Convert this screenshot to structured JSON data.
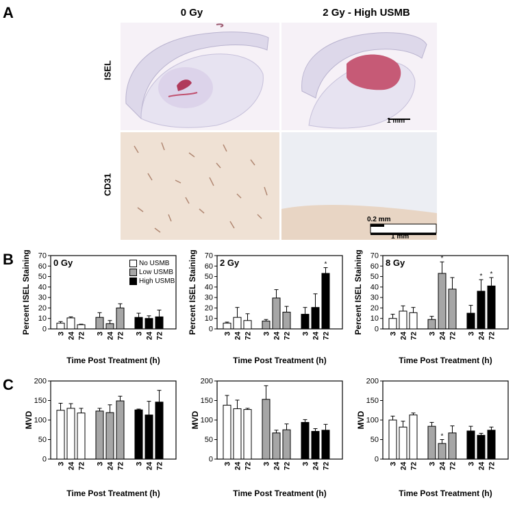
{
  "panelA": {
    "letter": "A",
    "col_titles": [
      "0 Gy",
      "2 Gy - High USMB"
    ],
    "row_labels": [
      "ISEL",
      "CD31"
    ],
    "scalebar_1": "1 mm",
    "scalebar_2a": "0.2 mm",
    "scalebar_2b": "1 mm"
  },
  "panelB": {
    "letter": "B"
  },
  "panelC": {
    "letter": "C"
  },
  "legend": [
    "No USMB",
    "Low USMB",
    "High USMB"
  ],
  "colors": {
    "no": "#ffffff",
    "low": "#a6a6a6",
    "high": "#000000"
  },
  "chart_data": [
    {
      "type": "bar",
      "panel": "B",
      "title": "0 Gy",
      "ylabel": "Percent ISEL Staining",
      "xlabel": "Time Post Treatment (h)",
      "ylim": [
        0,
        70
      ],
      "yticks": [
        0,
        10,
        20,
        30,
        40,
        50,
        60,
        70
      ],
      "categories": [
        "3",
        "24",
        "72"
      ],
      "series": [
        {
          "name": "No USMB",
          "values": [
            5.5,
            10.5,
            4
          ],
          "errors": [
            1.5,
            1,
            0.5
          ],
          "sig": [
            false,
            false,
            false
          ]
        },
        {
          "name": "Low USMB",
          "values": [
            11,
            5,
            20
          ],
          "errors": [
            4.5,
            3,
            4
          ],
          "sig": [
            false,
            false,
            false
          ]
        },
        {
          "name": "High USMB",
          "values": [
            11,
            10,
            11.5
          ],
          "errors": [
            4,
            2.5,
            6.5
          ],
          "sig": [
            false,
            false,
            false
          ]
        }
      ]
    },
    {
      "type": "bar",
      "panel": "B",
      "title": "2 Gy",
      "ylabel": "Percent ISEL Staining",
      "xlabel": "Time Post Treatment (h)",
      "ylim": [
        0,
        70
      ],
      "yticks": [
        0,
        10,
        20,
        30,
        40,
        50,
        60,
        70
      ],
      "categories": [
        "3",
        "24",
        "72"
      ],
      "series": [
        {
          "series_key": "No USMB",
          "values": [
            5.5,
            11,
            8
          ],
          "errors": [
            1,
            9.5,
            6.5
          ],
          "sig": [
            false,
            false,
            false
          ]
        },
        {
          "series_key": "Low USMB",
          "values": [
            7.5,
            29.5,
            16
          ],
          "errors": [
            1.5,
            8,
            5.5
          ],
          "sig": [
            false,
            false,
            false
          ]
        },
        {
          "series_key": "High USMB",
          "values": [
            14,
            20.5,
            53
          ],
          "errors": [
            6.5,
            13,
            5.5
          ],
          "sig": [
            false,
            false,
            true
          ]
        }
      ]
    },
    {
      "type": "bar",
      "panel": "B",
      "title": "8 Gy",
      "ylabel": "Percent ISEL Staining",
      "xlabel": "Time Post Treatment (h)",
      "ylim": [
        0,
        70
      ],
      "yticks": [
        0,
        10,
        20,
        30,
        40,
        50,
        60,
        70
      ],
      "categories": [
        "3",
        "24",
        "72"
      ],
      "series": [
        {
          "series_key": "No USMB",
          "values": [
            10,
            17,
            15.5
          ],
          "errors": [
            4,
            5,
            5
          ],
          "sig": [
            false,
            false,
            false
          ]
        },
        {
          "series_key": "Low USMB",
          "values": [
            9,
            53,
            38
          ],
          "errors": [
            3,
            11,
            11
          ],
          "sig": [
            false,
            true,
            false
          ]
        },
        {
          "series_key": "High USMB",
          "values": [
            15,
            36,
            41
          ],
          "errors": [
            7.5,
            11,
            8
          ],
          "sig": [
            false,
            true,
            true
          ]
        }
      ]
    },
    {
      "type": "bar",
      "panel": "C",
      "title": "",
      "ylabel": "MVD",
      "xlabel": "Time Post Treatment (h)",
      "ylim": [
        0,
        200
      ],
      "yticks": [
        0,
        50,
        100,
        150,
        200
      ],
      "categories": [
        "3",
        "24",
        "72"
      ],
      "series": [
        {
          "series_key": "No USMB",
          "values": [
            125,
            130,
            118
          ],
          "errors": [
            18,
            12,
            12
          ],
          "sig": [
            false,
            false,
            false
          ]
        },
        {
          "series_key": "Low USMB",
          "values": [
            123,
            119,
            149
          ],
          "errors": [
            7,
            20,
            12
          ],
          "sig": [
            false,
            false,
            false
          ]
        },
        {
          "series_key": "High USMB",
          "values": [
            126,
            113,
            146
          ],
          "errors": [
            2,
            35,
            30
          ],
          "sig": [
            false,
            false,
            false
          ]
        }
      ]
    },
    {
      "type": "bar",
      "panel": "C",
      "title": "",
      "ylabel": "MVD",
      "xlabel": "Time Post Treatment (h)",
      "ylim": [
        0,
        200
      ],
      "yticks": [
        0,
        50,
        100,
        150,
        200
      ],
      "categories": [
        "3",
        "24",
        "72"
      ],
      "series": [
        {
          "series_key": "No USMB",
          "values": [
            138,
            129,
            127
          ],
          "errors": [
            25,
            22,
            3
          ],
          "sig": [
            false,
            false,
            false
          ]
        },
        {
          "series_key": "Low USMB",
          "values": [
            153,
            67,
            75
          ],
          "errors": [
            35,
            7,
            15
          ],
          "sig": [
            false,
            false,
            false
          ]
        },
        {
          "series_key": "High USMB",
          "values": [
            94,
            71,
            74
          ],
          "errors": [
            7,
            7,
            15
          ],
          "sig": [
            false,
            false,
            false
          ]
        }
      ]
    },
    {
      "type": "bar",
      "panel": "C",
      "title": "",
      "ylabel": "MVD",
      "xlabel": "Time Post Treatment (h)",
      "ylim": [
        0,
        200
      ],
      "yticks": [
        0,
        50,
        100,
        150,
        200
      ],
      "categories": [
        "3",
        "24",
        "72"
      ],
      "series": [
        {
          "series_key": "No USMB",
          "values": [
            100,
            82,
            113
          ],
          "errors": [
            10,
            15,
            5
          ],
          "sig": [
            false,
            false,
            false
          ]
        },
        {
          "series_key": "Low USMB",
          "values": [
            84,
            40,
            67
          ],
          "errors": [
            10,
            10,
            18
          ],
          "sig": [
            false,
            true,
            false
          ]
        },
        {
          "series_key": "High USMB",
          "values": [
            72,
            61,
            74
          ],
          "errors": [
            12,
            5,
            8
          ],
          "sig": [
            false,
            false,
            false
          ]
        }
      ]
    }
  ]
}
